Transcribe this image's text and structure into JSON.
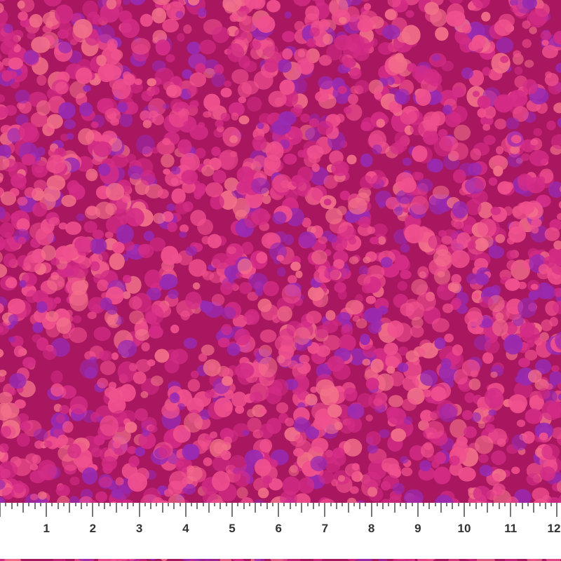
{
  "image": {
    "subject": "pink and purple mottled dot fabric swatch",
    "colors": {
      "base": "#a8175f",
      "pink": "#f0508e",
      "magenta": "#d42c86",
      "purple": "#9a2ab0",
      "coral": "#f2708a"
    }
  },
  "ruler": {
    "unit": "inch",
    "labels": [
      "1",
      "2",
      "3",
      "4",
      "5",
      "6",
      "7",
      "8",
      "9",
      "10",
      "11",
      "12"
    ]
  }
}
